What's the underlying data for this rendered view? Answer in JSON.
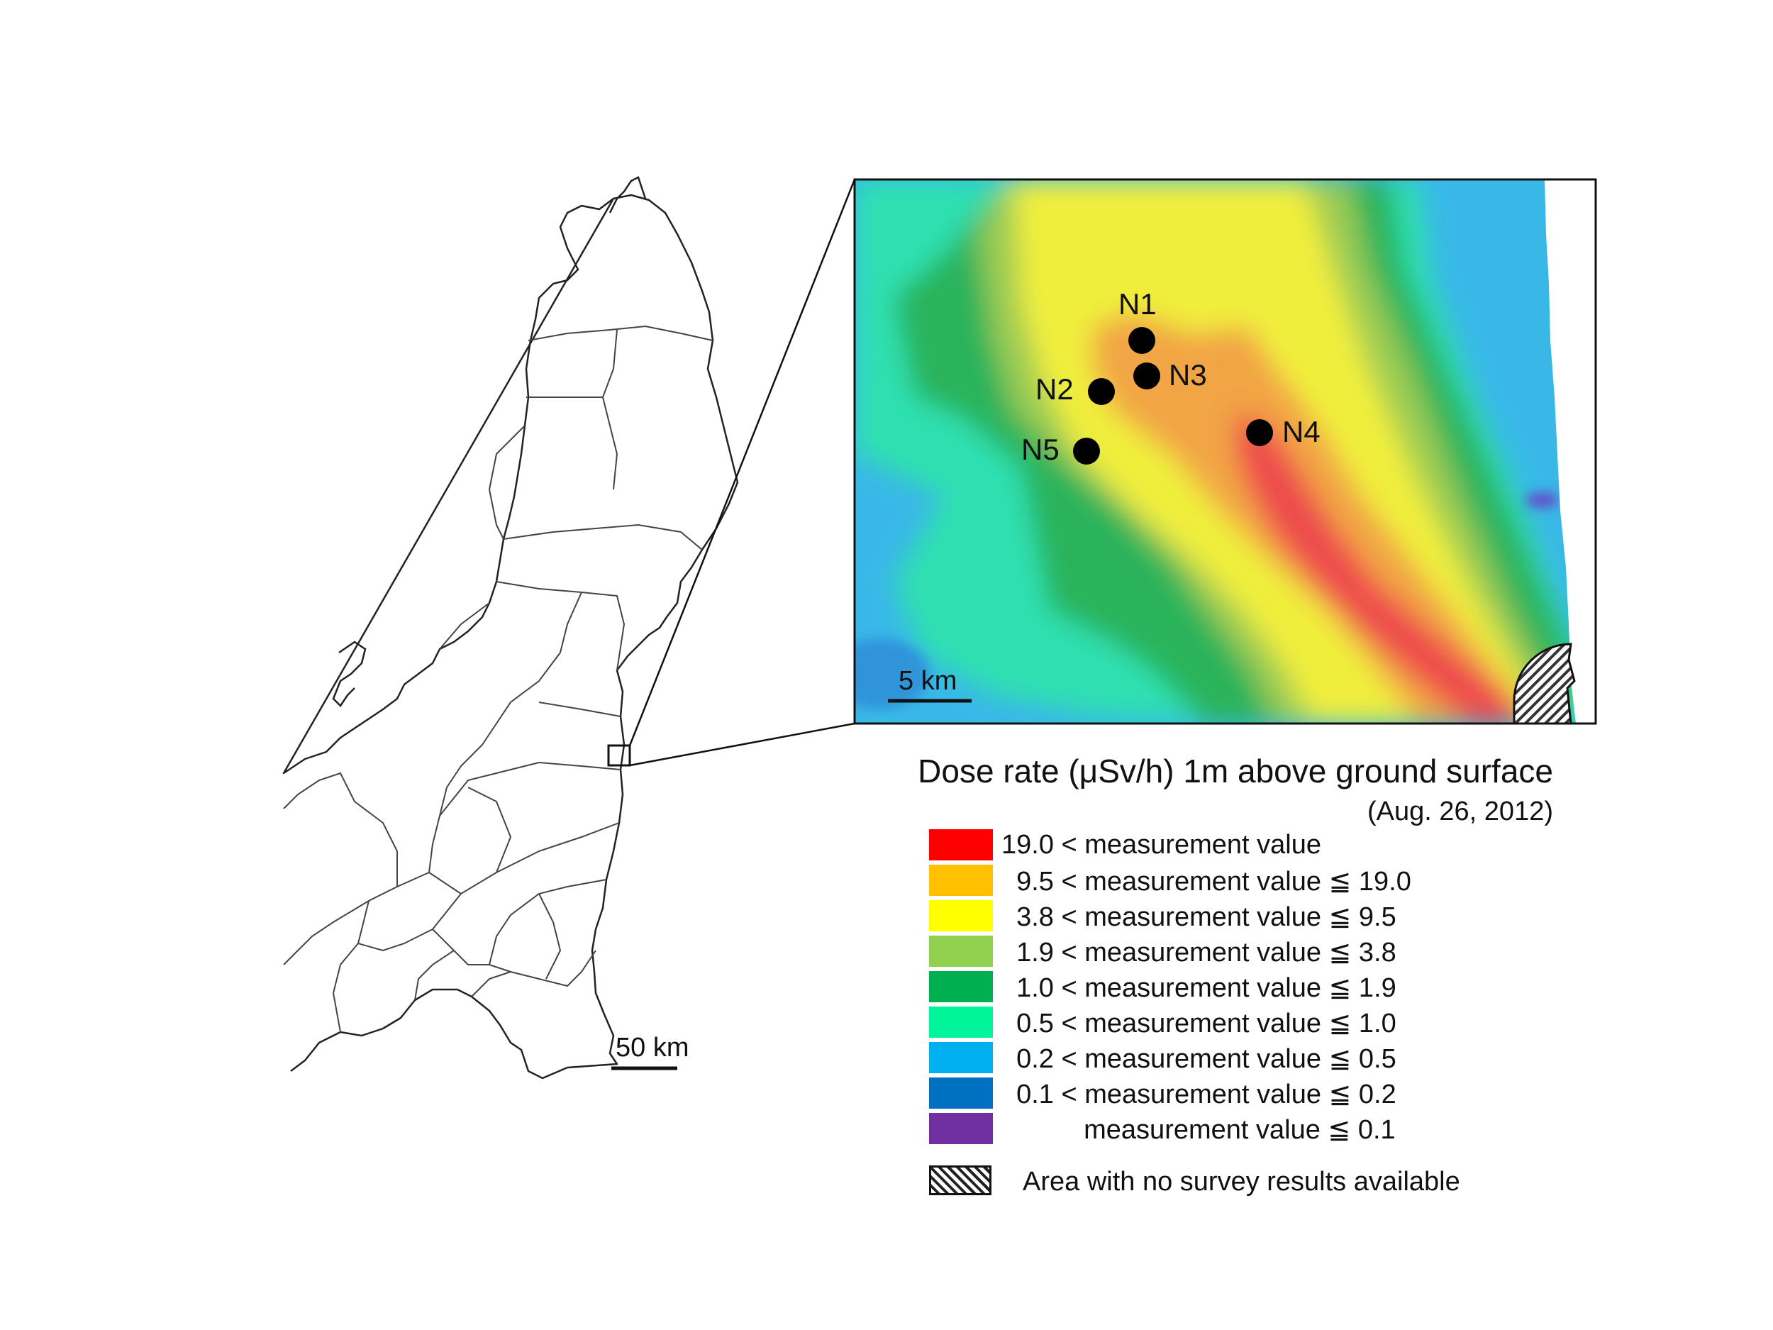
{
  "overview_map": {
    "scale_label": "50 km"
  },
  "inset_map": {
    "scale_label": "5 km",
    "points": [
      {
        "id": "N1",
        "label": "N1"
      },
      {
        "id": "N2",
        "label": "N2"
      },
      {
        "id": "N3",
        "label": "N3"
      },
      {
        "id": "N4",
        "label": "N4"
      },
      {
        "id": "N5",
        "label": "N5"
      }
    ]
  },
  "legend": {
    "title": "Dose rate (μSv/h) 1m above ground surface",
    "date": "(Aug. 26, 2012)",
    "classes": [
      {
        "label": "19.0 < measurement value",
        "color": "#ff0000"
      },
      {
        "label": "  9.5 < measurement value ≦ 19.0",
        "color": "#ffc000"
      },
      {
        "label": "  3.8 < measurement value ≦ 9.5",
        "color": "#ffff00"
      },
      {
        "label": "  1.9 < measurement value ≦ 3.8",
        "color": "#92d050"
      },
      {
        "label": "  1.0 < measurement value ≦ 1.9",
        "color": "#00b050"
      },
      {
        "label": "  0.5 < measurement value ≦ 1.0",
        "color": "#00f59a"
      },
      {
        "label": "  0.2 < measurement value ≦ 0.5",
        "color": "#00b0f0"
      },
      {
        "label": "  0.1 < measurement value ≦ 0.2",
        "color": "#0070c0"
      },
      {
        "label": "           measurement value ≦ 0.1",
        "color": "#7030a0"
      }
    ],
    "no_data_label": "Area with no survey results available"
  }
}
